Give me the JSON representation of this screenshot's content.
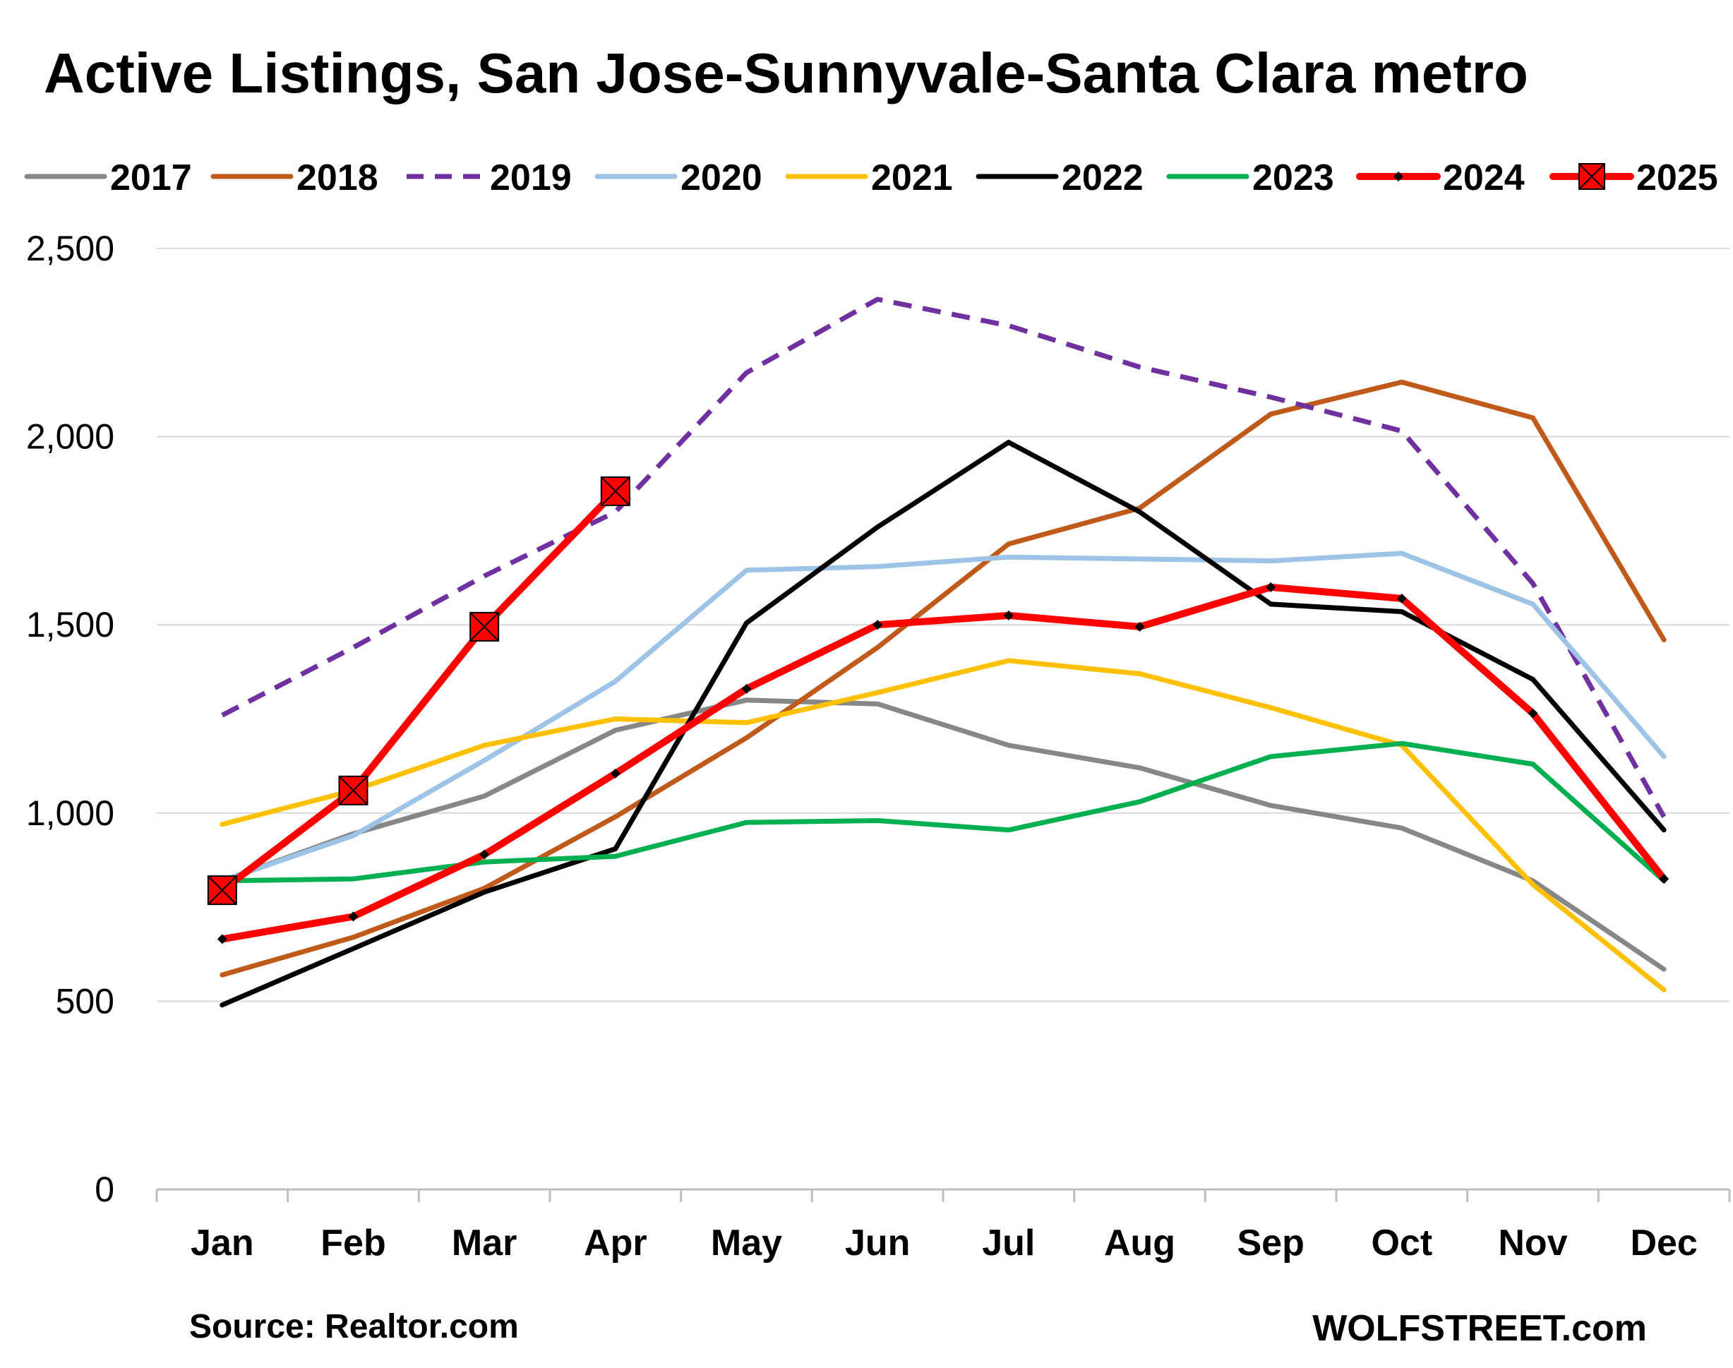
{
  "title": "Active Listings, San Jose-Sunnyvale-Santa Clara metro",
  "source": "Source: Realtor.com",
  "brand": "WOLFSTREET.com",
  "chart_data": {
    "type": "line",
    "categories": [
      "Jan",
      "Feb",
      "Mar",
      "Apr",
      "May",
      "Jun",
      "Jul",
      "Aug",
      "Sep",
      "Oct",
      "Nov",
      "Dec"
    ],
    "y_ticks": [
      "0",
      "500",
      "1,000",
      "1,500",
      "2,000",
      "2,500"
    ],
    "ylim": [
      0,
      2500
    ],
    "grid": "horizontal",
    "legend_position": "top",
    "series": [
      {
        "name": "2017",
        "color": "#878787",
        "style": "solid",
        "marker": "none",
        "values": [
          820,
          945,
          1045,
          1220,
          1300,
          1290,
          1180,
          1120,
          1020,
          960,
          820,
          585
        ]
      },
      {
        "name": "2018",
        "color": "#C05A1B",
        "style": "solid",
        "marker": "none",
        "values": [
          570,
          670,
          800,
          990,
          1200,
          1440,
          1715,
          1810,
          2060,
          2145,
          2050,
          1460
        ]
      },
      {
        "name": "2019",
        "color": "#7030A0",
        "style": "dashed",
        "marker": "none",
        "values": [
          1260,
          1440,
          1630,
          1800,
          2170,
          2365,
          2295,
          2185,
          2105,
          2015,
          1610,
          990
        ]
      },
      {
        "name": "2020",
        "color": "#9DC3E6",
        "style": "solid",
        "marker": "none",
        "values": [
          820,
          940,
          1140,
          1350,
          1645,
          1655,
          1680,
          1675,
          1670,
          1690,
          1555,
          1150
        ]
      },
      {
        "name": "2021",
        "color": "#FFC000",
        "style": "solid",
        "marker": "none",
        "values": [
          970,
          1060,
          1180,
          1250,
          1240,
          1320,
          1405,
          1370,
          1280,
          1180,
          810,
          530
        ]
      },
      {
        "name": "2022",
        "color": "#000000",
        "style": "solid",
        "marker": "none",
        "values": [
          490,
          640,
          790,
          905,
          1505,
          1760,
          1985,
          1800,
          1555,
          1535,
          1355,
          955
        ]
      },
      {
        "name": "2023",
        "color": "#00B050",
        "style": "solid",
        "marker": "none",
        "values": [
          820,
          825,
          870,
          885,
          975,
          980,
          955,
          1030,
          1150,
          1185,
          1130,
          820
        ]
      },
      {
        "name": "2024",
        "color": "#FF0000",
        "style": "solid",
        "marker": "diamond",
        "values": [
          665,
          725,
          890,
          1105,
          1330,
          1500,
          1525,
          1495,
          1600,
          1570,
          1265,
          825
        ]
      },
      {
        "name": "2025",
        "color": "#FF0000",
        "style": "solid",
        "marker": "square-x",
        "values": [
          795,
          1060,
          1495,
          1855,
          null,
          null,
          null,
          null,
          null,
          null,
          null,
          null
        ]
      }
    ]
  }
}
